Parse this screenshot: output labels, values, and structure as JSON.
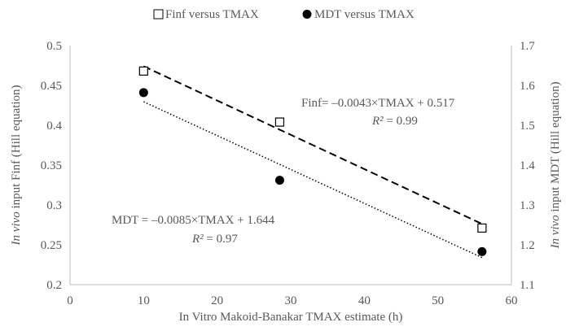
{
  "chart_data": {
    "type": "scatter",
    "title": "",
    "xlabel": "In Vitro Makoid-Banakar TMAX estimate (h)",
    "ylabel_left": {
      "italic": "In vivo",
      "rest": " input Finf (Hill equation)"
    },
    "ylabel_right": {
      "italic": "In vivo",
      "rest": " input MDT (Hill equation)"
    },
    "xlim": [
      0,
      60
    ],
    "xticks": [
      0,
      10,
      20,
      30,
      40,
      50,
      60
    ],
    "ylim_left": [
      0.2,
      0.5
    ],
    "yticks_left": [
      "0.2",
      "0.25",
      "0.3",
      "0.35",
      "0.4",
      "0.45",
      "0.5"
    ],
    "ylim_right": [
      1.1,
      1.7
    ],
    "yticks_right": [
      "1.1",
      "1.2",
      "1.3",
      "1.4",
      "1.5",
      "1.6",
      "1.7"
    ],
    "grid": false,
    "legend_position": "top",
    "series": [
      {
        "name": "Finf versus TMAX",
        "axis": "left",
        "marker": "open-square",
        "x": [
          10,
          28.5,
          56
        ],
        "y": [
          0.468,
          0.404,
          0.271
        ],
        "trendline": {
          "style": "dashed",
          "slope": -0.0043,
          "intercept": 0.517,
          "x_range": [
            10,
            56
          ]
        }
      },
      {
        "name": "MDT versus TMAX",
        "axis": "right",
        "marker": "filled-circle",
        "x": [
          10,
          28.5,
          56
        ],
        "y": [
          1.582,
          1.362,
          1.183
        ],
        "trendline": {
          "style": "dotted",
          "slope": -0.0085,
          "intercept": 1.644,
          "x_range": [
            10,
            56
          ]
        }
      }
    ],
    "annotations": {
      "finf_eq": "Finf= –0.0043×TMAX + 0.517",
      "finf_r2_label": "R²",
      "finf_r2_value": " = 0.99",
      "mdt_eq": "MDT = –0.0085×TMAX + 1.644",
      "mdt_r2_label": "R²",
      "mdt_r2_value": " = 0.97"
    },
    "colors": {
      "marker": "#000000",
      "axis": "#bfbfbf",
      "text": "#595959"
    }
  }
}
